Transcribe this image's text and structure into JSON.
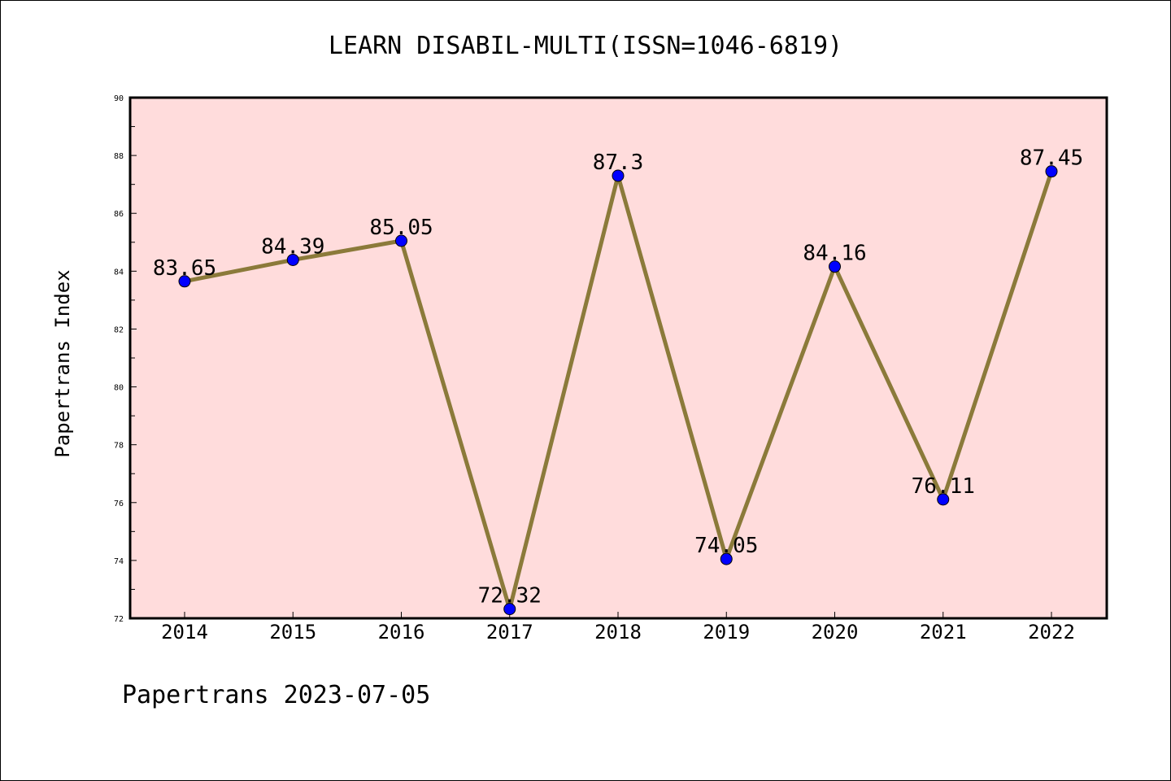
{
  "chart_data": {
    "type": "line",
    "title": "LEARN DISABIL-MULTI(ISSN=1046-6819)",
    "xlabel": "",
    "ylabel": "Papertrans Index",
    "categories": [
      "2014",
      "2015",
      "2016",
      "2017",
      "2018",
      "2019",
      "2020",
      "2021",
      "2022"
    ],
    "series": [
      {
        "values": [
          83.65,
          84.39,
          85.05,
          72.32,
          87.3,
          74.05,
          84.16,
          76.11,
          87.45
        ],
        "labels": [
          "83.65",
          "84.39",
          "85.05",
          "72.32",
          "87.3",
          "74.05",
          "84.16",
          "76.11",
          "87.45"
        ]
      }
    ],
    "ylim": [
      72,
      90
    ],
    "yticks": [
      "72",
      "74",
      "76",
      "78",
      "80",
      "82",
      "84",
      "86",
      "88",
      "90"
    ],
    "grid": false,
    "legend": "none",
    "colors": {
      "plot_background": "#ffdcdc",
      "line": "#8b7a3a",
      "marker": "#0000ff"
    }
  },
  "footer": {
    "text": "Papertrans 2023-07-05"
  }
}
